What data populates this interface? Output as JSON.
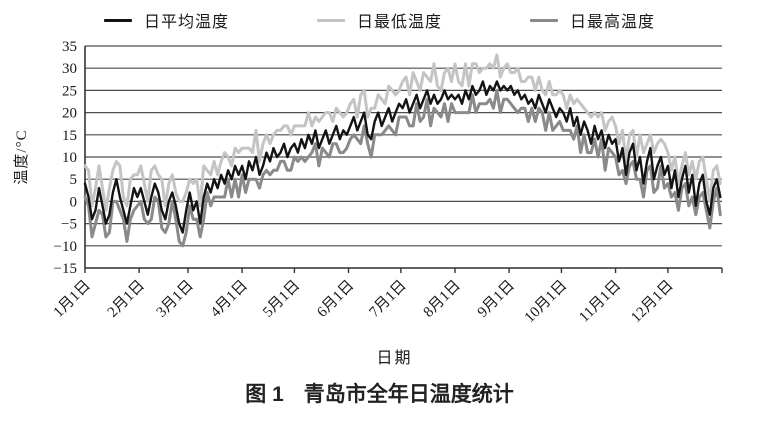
{
  "caption": {
    "prefix": "图 1",
    "title": "青岛市全年日温度统计"
  },
  "y_axis": {
    "title": "温度/°C",
    "ticks": [
      35,
      30,
      25,
      20,
      15,
      10,
      5,
      0,
      -5,
      -10,
      -15
    ],
    "min": -15,
    "max": 35
  },
  "x_axis": {
    "title": "日期",
    "labels": [
      "1月1日",
      "2月1日",
      "3月1日",
      "4月1日",
      "5月1日",
      "6月1日",
      "7月1日",
      "8月1日",
      "9月1日",
      "10月1日",
      "11月1日",
      "12月1日"
    ],
    "month_start_days": [
      0,
      31,
      59,
      90,
      120,
      151,
      181,
      212,
      243,
      273,
      304,
      334
    ],
    "total_days": 365
  },
  "colors": {
    "grid": "#4d4d4d",
    "axis": "#333333",
    "text": "#1a1a1a"
  },
  "chart_data": {
    "type": "line",
    "title": "青岛市全年日温度统计",
    "xlabel": "日期",
    "ylabel": "温度/°C",
    "ylim": [
      -15,
      35
    ],
    "grid": "horizontal",
    "legend_position": "top",
    "x_unit": "day_of_year",
    "sample_step_days": 2,
    "draw_order": [
      1,
      2,
      0
    ],
    "series": [
      {
        "name": "日平均温度",
        "color": "#141414",
        "width": 2.4,
        "values": [
          4,
          1,
          -4,
          -2,
          3,
          -1,
          -5,
          -3,
          2,
          5,
          1,
          -2,
          -5,
          -1,
          3,
          1,
          3,
          0,
          -3,
          1,
          4,
          2,
          -2,
          -4,
          0,
          2,
          -1,
          -5,
          -7,
          -2,
          2,
          -2,
          0,
          -5,
          1,
          4,
          2,
          5,
          3,
          6,
          4,
          7,
          5,
          8,
          6,
          8,
          5,
          9,
          7,
          10,
          6,
          8,
          11,
          9,
          12,
          10,
          11,
          13,
          10,
          12,
          13,
          11,
          14,
          12,
          15,
          13,
          16,
          12,
          14,
          16,
          13,
          15,
          17,
          14,
          16,
          15,
          17,
          19,
          16,
          18,
          20,
          15,
          14,
          18,
          20,
          17,
          19,
          21,
          18,
          20,
          22,
          21,
          23,
          20,
          22,
          24,
          21,
          23,
          25,
          22,
          24,
          22,
          23,
          25,
          23,
          24,
          23,
          24,
          22,
          25,
          23,
          26,
          24,
          25,
          27,
          24,
          26,
          25,
          27,
          25,
          26,
          25,
          26,
          24,
          25,
          23,
          24,
          22,
          23,
          21,
          24,
          22,
          20,
          23,
          21,
          19,
          21,
          20,
          18,
          21,
          17,
          19,
          15,
          18,
          16,
          13,
          17,
          14,
          16,
          12,
          15,
          13,
          14,
          9,
          12,
          6,
          11,
          13,
          7,
          10,
          4,
          9,
          12,
          5,
          8,
          10,
          6,
          8,
          3,
          7,
          1,
          5,
          8,
          2,
          6,
          -1,
          4,
          6,
          0,
          -3,
          3,
          5,
          1
        ]
      },
      {
        "name": "日最低温度",
        "color": "#c4c4c4",
        "width": 3,
        "values": [
          8,
          7,
          -1,
          3,
          8,
          3,
          -2,
          3,
          7,
          9,
          8,
          1,
          -1,
          5,
          6,
          6,
          8,
          4,
          0,
          7,
          8,
          6,
          5,
          -1,
          4,
          6,
          2,
          0,
          0,
          2,
          5,
          4,
          5,
          -1,
          8,
          7,
          6,
          9,
          6,
          9,
          11,
          10,
          8,
          12,
          11,
          12,
          12,
          12,
          11,
          16,
          9,
          13,
          15,
          13,
          15,
          16,
          16,
          17,
          17,
          15,
          17,
          17,
          17,
          17,
          20,
          17,
          19,
          18,
          19,
          20,
          20,
          18,
          21,
          20,
          19,
          20,
          22,
          23,
          19,
          24,
          25,
          19,
          21,
          21,
          24,
          23,
          22,
          26,
          25,
          24,
          25,
          27,
          28,
          24,
          29,
          27,
          25,
          29,
          28,
          27,
          31,
          26,
          25,
          29,
          30,
          27,
          31,
          27,
          26,
          31,
          26,
          31,
          31,
          29,
          30,
          30,
          31,
          30,
          33,
          28,
          30,
          31,
          29,
          29,
          30,
          27,
          27,
          28,
          28,
          25,
          28,
          25,
          24,
          27,
          24,
          24,
          25,
          24,
          21,
          24,
          22,
          23,
          22,
          21,
          20,
          19,
          20,
          19,
          20,
          16,
          18,
          19,
          17,
          13,
          16,
          9,
          15,
          16,
          10,
          15,
          11,
          13,
          15,
          11,
          13,
          14,
          13,
          11,
          7,
          10,
          4,
          8,
          11,
          6,
          9,
          5,
          9,
          10,
          5,
          0,
          7,
          8,
          4
        ]
      },
      {
        "name": "日最高温度",
        "color": "#8a8a8a",
        "width": 3,
        "values": [
          1,
          -1,
          -8,
          -5,
          -2,
          -3,
          -8,
          -7,
          0,
          0,
          -2,
          -4,
          -9,
          -4,
          -2,
          -1,
          0,
          -4,
          -5,
          -4,
          1,
          0,
          -6,
          -7,
          -5,
          0,
          -4,
          -9,
          -10,
          -7,
          -1,
          -4,
          -4,
          -8,
          -4,
          2,
          -1,
          1,
          1,
          1,
          1,
          5,
          1,
          5,
          1,
          6,
          2,
          5,
          5,
          5,
          3,
          6,
          7,
          6,
          7,
          7,
          9,
          9,
          7,
          7,
          10,
          9,
          10,
          9,
          10,
          11,
          13,
          8,
          12,
          11,
          10,
          13,
          13,
          11,
          11,
          12,
          14,
          15,
          14,
          13,
          17,
          13,
          10,
          15,
          15,
          15,
          16,
          17,
          16,
          15,
          19,
          19,
          19,
          17,
          17,
          22,
          18,
          19,
          23,
          17,
          21,
          20,
          19,
          22,
          18,
          22,
          20,
          20,
          20,
          20,
          20,
          24,
          20,
          22,
          22,
          22,
          23,
          21,
          25,
          20,
          23,
          23,
          22,
          21,
          20,
          21,
          21,
          18,
          21,
          18,
          21,
          20,
          16,
          20,
          16,
          17,
          18,
          16,
          16,
          16,
          14,
          17,
          11,
          15,
          11,
          11,
          14,
          10,
          14,
          7,
          12,
          11,
          10,
          6,
          7,
          4,
          8,
          9,
          5,
          5,
          1,
          7,
          8,
          2,
          3,
          8,
          3,
          4,
          1,
          2,
          -2,
          3,
          4,
          -1,
          1,
          -3,
          1,
          2,
          -2,
          -6,
          0,
          3,
          -3
        ]
      }
    ]
  }
}
